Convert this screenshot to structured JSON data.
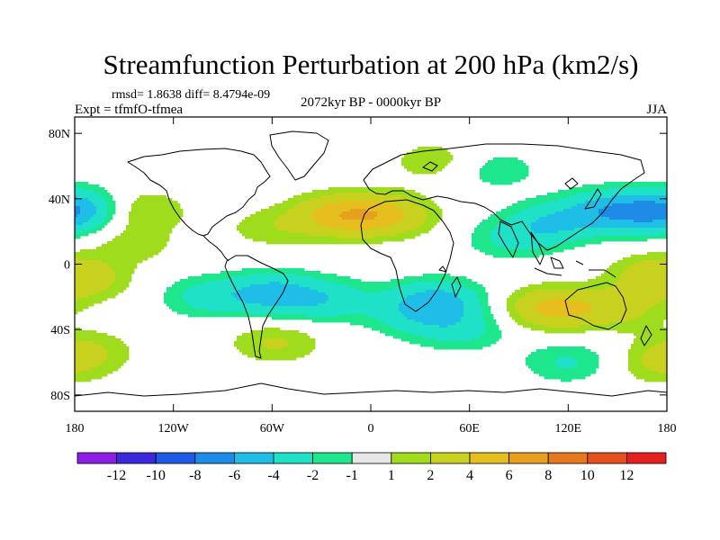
{
  "chart_data": {
    "type": "heatmap",
    "title": "Streamfunction Perturbation at 200 hPa (km2/s)",
    "stats": "rmsd= 1.8638 diff= 8.4794e-09",
    "experiment": "Expt = tfmfO-tfmea",
    "period": "2072kyr BP - 0000kyr BP",
    "season": "JJA",
    "x_ticks": [
      {
        "lon": -180,
        "label": "180"
      },
      {
        "lon": -120,
        "label": "120W"
      },
      {
        "lon": -60,
        "label": "60W"
      },
      {
        "lon": 0,
        "label": "0"
      },
      {
        "lon": 60,
        "label": "60E"
      },
      {
        "lon": 120,
        "label": "120E"
      },
      {
        "lon": 180,
        "label": "180"
      }
    ],
    "y_ticks": [
      {
        "lat": 80,
        "label": "80N"
      },
      {
        "lat": 40,
        "label": "40N"
      },
      {
        "lat": 0,
        "label": "0"
      },
      {
        "lat": -40,
        "label": "40S"
      },
      {
        "lat": -80,
        "label": "80S"
      }
    ],
    "xlim": [
      -180,
      180
    ],
    "ylim": [
      -90,
      90
    ],
    "colorbar": {
      "colors": [
        "#8c1ee6",
        "#3c28dc",
        "#1e5ae6",
        "#1e8ce6",
        "#1ebee6",
        "#1ee1c8",
        "#1ee68c",
        "#e6e6e6",
        "#a0dc1e",
        "#c8d21e",
        "#e6be1e",
        "#e6a01e",
        "#e6781e",
        "#e6501e",
        "#e61e1e"
      ],
      "labels": [
        {
          "value": -12,
          "label": "-12"
        },
        {
          "value": -10,
          "label": "-10"
        },
        {
          "value": -8,
          "label": "-8"
        },
        {
          "value": -6,
          "label": "-6"
        },
        {
          "value": -4,
          "label": "-4"
        },
        {
          "value": -2,
          "label": "-2"
        },
        {
          "value": -1,
          "label": "-1"
        },
        {
          "value": 1,
          "label": "1"
        },
        {
          "value": 2,
          "label": "2"
        },
        {
          "value": 4,
          "label": "4"
        },
        {
          "value": 6,
          "label": "6"
        },
        {
          "value": 8,
          "label": "8"
        },
        {
          "value": 10,
          "label": "10"
        },
        {
          "value": 12,
          "label": "12"
        }
      ]
    },
    "anomaly_centers": [
      {
        "lon": -175,
        "lat": 35,
        "amp": -3
      },
      {
        "lon": -142,
        "lat": 33,
        "amp": 2.5
      },
      {
        "lon": -145,
        "lat": 12,
        "amp": 1.5
      },
      {
        "lon": -175,
        "lat": -10,
        "amp": 2.5
      },
      {
        "lon": -172,
        "lat": -52,
        "amp": 1.8
      },
      {
        "lon": -100,
        "lat": -20,
        "amp": -2.5
      },
      {
        "lon": -60,
        "lat": -18,
        "amp": -4.5
      },
      {
        "lon": -25,
        "lat": -22,
        "amp": -3
      },
      {
        "lon": -58,
        "lat": -48,
        "amp": 2.2
      },
      {
        "lon": -62,
        "lat": 22,
        "amp": 1.5
      },
      {
        "lon": -20,
        "lat": 30,
        "amp": 4.5
      },
      {
        "lon": 10,
        "lat": 30,
        "amp": 4
      },
      {
        "lon": 40,
        "lat": -22,
        "amp": -4.5
      },
      {
        "lon": 25,
        "lat": -32,
        "amp": -2
      },
      {
        "lon": 55,
        "lat": -40,
        "amp": -2.5
      },
      {
        "lon": 40,
        "lat": 63,
        "amp": 1.8
      },
      {
        "lon": 75,
        "lat": 58,
        "amp": -1.8
      },
      {
        "lon": 85,
        "lat": 15,
        "amp": -2
      },
      {
        "lon": 110,
        "lat": 25,
        "amp": -3.5
      },
      {
        "lon": 145,
        "lat": 33,
        "amp": -4.5
      },
      {
        "lon": 175,
        "lat": 30,
        "amp": -3.5
      },
      {
        "lon": 110,
        "lat": -27,
        "amp": 4.5
      },
      {
        "lon": 150,
        "lat": -27,
        "amp": 2.5
      },
      {
        "lon": 170,
        "lat": -5,
        "amp": 1.8
      },
      {
        "lon": 120,
        "lat": -60,
        "amp": -2.2
      },
      {
        "lon": 175,
        "lat": -62,
        "amp": 1.8
      }
    ]
  }
}
